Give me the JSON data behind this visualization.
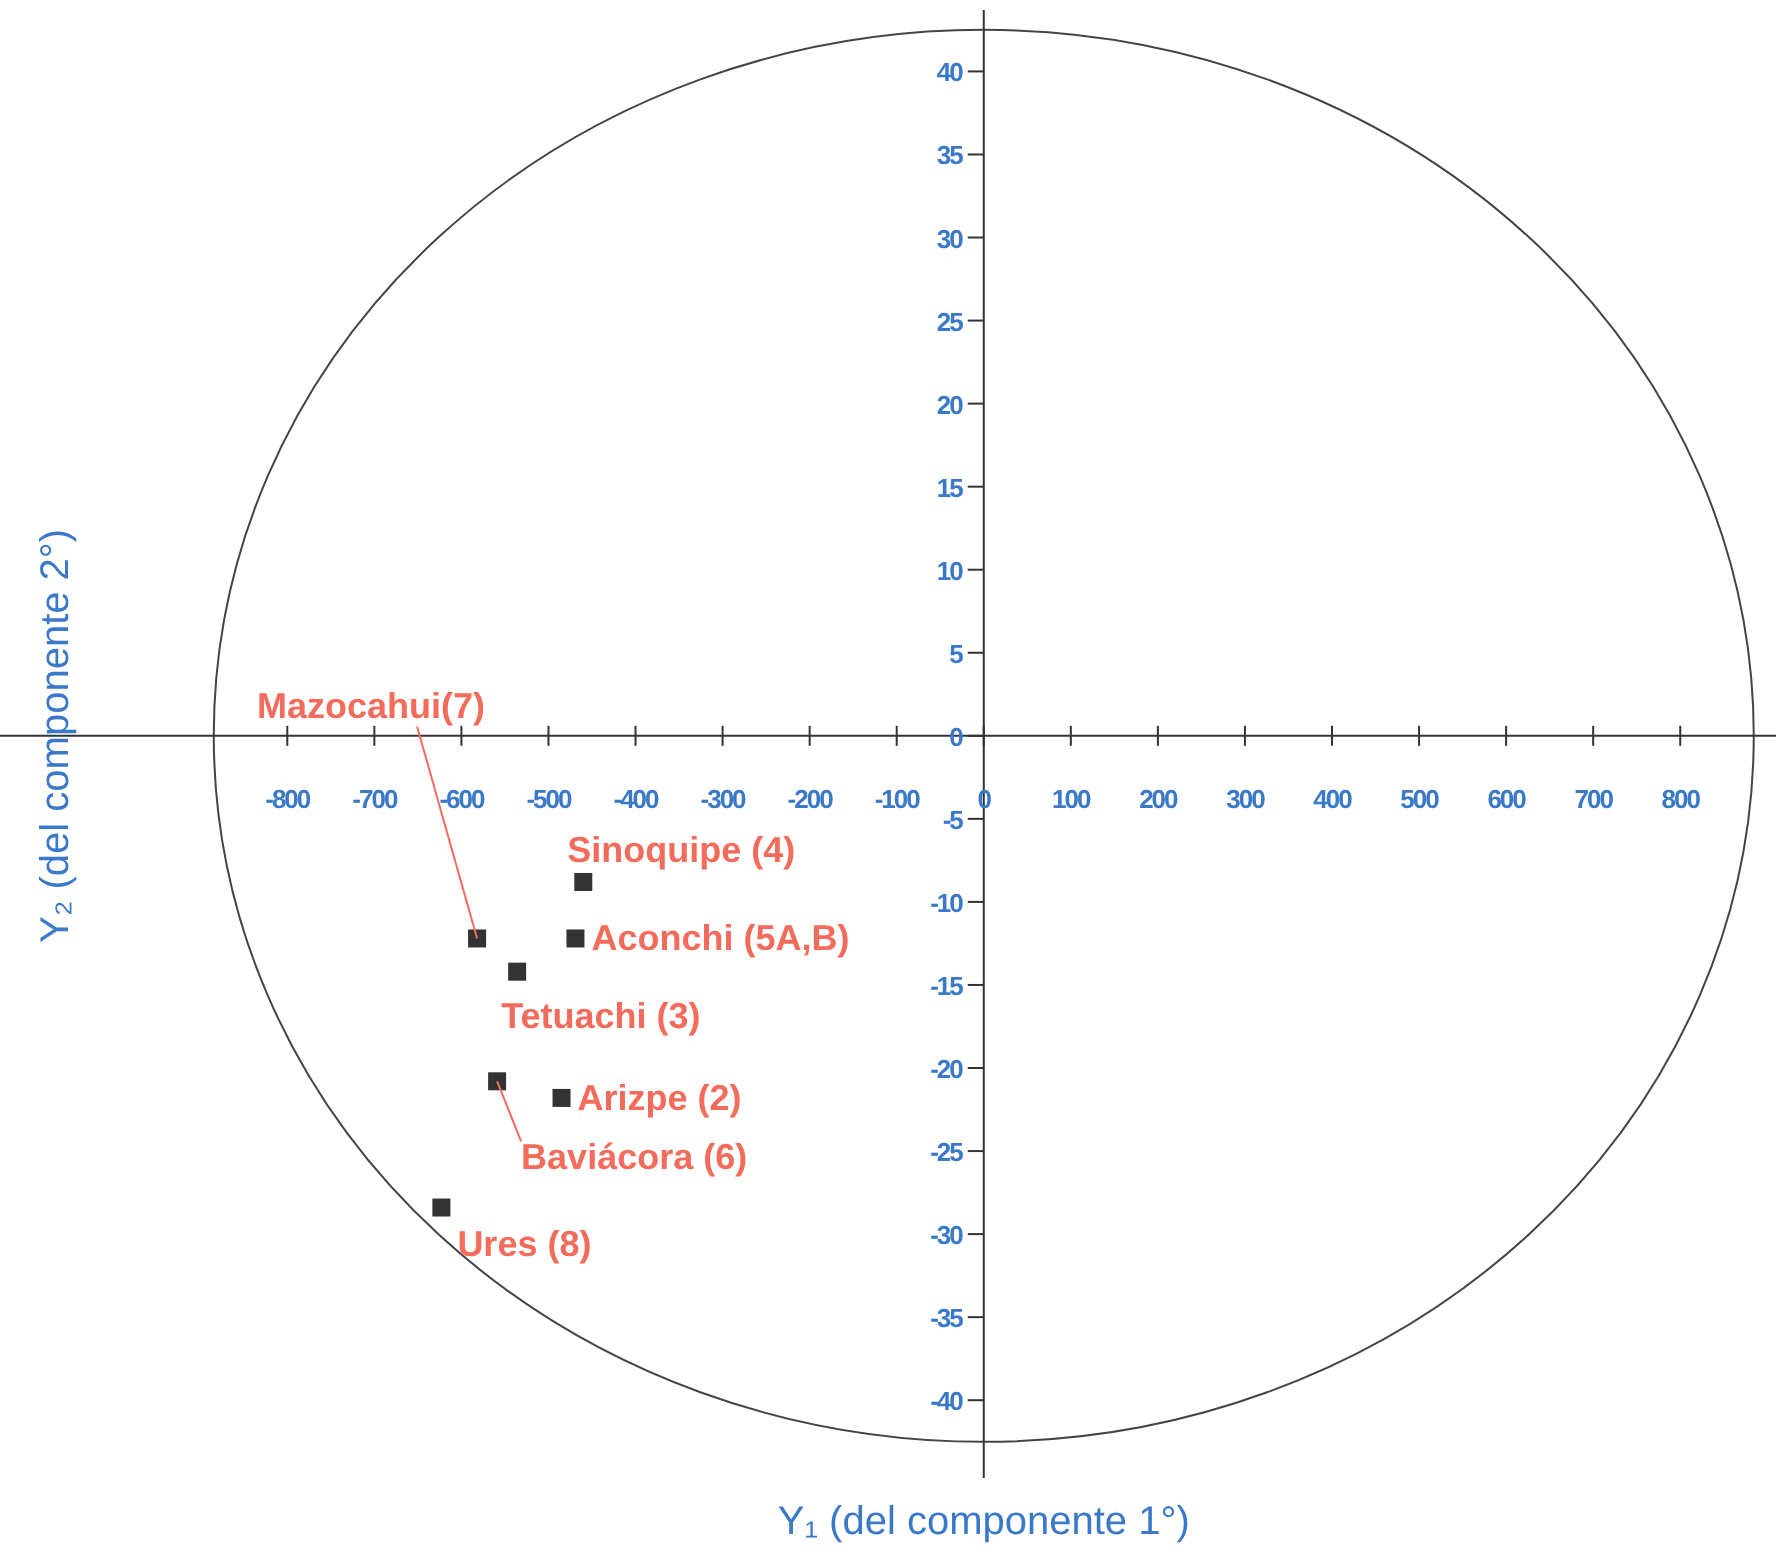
{
  "chart_data": {
    "type": "scatter",
    "xlabel": "Y₁  (del componente 1°)",
    "ylabel": "Y₂ (del componente 2°)",
    "x": [
      -460,
      -582,
      -469,
      -536,
      -559,
      -485,
      -623
    ],
    "series": [
      {
        "color": "#333333",
        "values": [
          -8.8,
          -12.2,
          -12.2,
          -14.2,
          -20.8,
          -21.8,
          -28.4
        ]
      }
    ],
    "marker": "square",
    "annotations": [
      {
        "text": "Sinoquipe (4)",
        "x": -460,
        "y": -8.8
      },
      {
        "text": "Mazocahui(7)",
        "x": -582,
        "y": -12.2
      },
      {
        "text": "Aconchi (5A,B)",
        "x": -469,
        "y": -12.2
      },
      {
        "text": "Tetuachi (3)",
        "x": -536,
        "y": -14.2
      },
      {
        "text": "Baviácora (6)",
        "x": -559,
        "y": -20.8
      },
      {
        "text": "Arizpe (2)",
        "x": -485,
        "y": -21.8
      },
      {
        "text": "Ures (8)",
        "x": -623,
        "y": -28.4
      }
    ],
    "xlim": [
      -1130,
      910
    ],
    "ylim": [
      -49.5,
      44.3
    ],
    "xticks": [
      -800,
      -700,
      -600,
      -500,
      -400,
      -300,
      -200,
      -100,
      0,
      100,
      200,
      300,
      400,
      500,
      600,
      700,
      800
    ],
    "yticks": [
      -40,
      -35,
      -30,
      -25,
      -20,
      -15,
      -10,
      -5,
      0,
      5,
      10,
      15,
      20,
      25,
      30,
      35,
      40
    ]
  }
}
